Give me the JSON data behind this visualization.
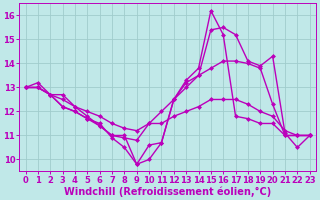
{
  "background_color": "#c0e8e8",
  "grid_color": "#a0cccc",
  "line_color": "#bb00bb",
  "x_label": "Windchill (Refroidissement éolien,°C)",
  "ylim": [
    9.5,
    16.5
  ],
  "xlim": [
    -0.5,
    23.5
  ],
  "yticks": [
    10,
    11,
    12,
    13,
    14,
    15,
    16
  ],
  "xticks": [
    0,
    1,
    2,
    3,
    4,
    5,
    6,
    7,
    8,
    9,
    10,
    11,
    12,
    13,
    14,
    15,
    16,
    17,
    18,
    19,
    20,
    21,
    22,
    23
  ],
  "lines": [
    [
      13.0,
      13.2,
      12.7,
      12.7,
      12.2,
      11.8,
      11.4,
      11.0,
      11.0,
      9.8,
      10.6,
      10.7,
      12.5,
      13.2,
      13.5,
      15.4,
      15.5,
      15.2,
      14.1,
      13.9,
      14.3,
      11.1,
      10.5,
      11.0
    ],
    [
      13.0,
      13.0,
      12.7,
      12.5,
      12.2,
      12.0,
      11.8,
      11.5,
      11.3,
      11.2,
      11.5,
      12.0,
      12.5,
      13.0,
      13.5,
      13.8,
      14.1,
      14.1,
      14.0,
      13.8,
      12.3,
      11.0,
      11.0,
      11.0
    ],
    [
      13.0,
      13.0,
      12.7,
      12.2,
      12.0,
      11.7,
      11.5,
      10.9,
      10.5,
      9.8,
      10.0,
      10.7,
      12.5,
      13.3,
      13.8,
      16.2,
      15.2,
      11.8,
      11.7,
      11.5,
      11.5,
      11.0,
      11.0,
      11.0
    ],
    [
      13.0,
      13.0,
      12.7,
      12.2,
      12.0,
      11.7,
      11.4,
      11.0,
      10.9,
      10.8,
      11.5,
      11.5,
      11.8,
      12.0,
      12.2,
      12.5,
      12.5,
      12.5,
      12.3,
      12.0,
      11.8,
      11.2,
      11.0,
      11.0
    ]
  ],
  "axis_fontsize": 7,
  "tick_fontsize": 6,
  "line_width": 1.0,
  "marker": "D",
  "marker_size": 2.5
}
